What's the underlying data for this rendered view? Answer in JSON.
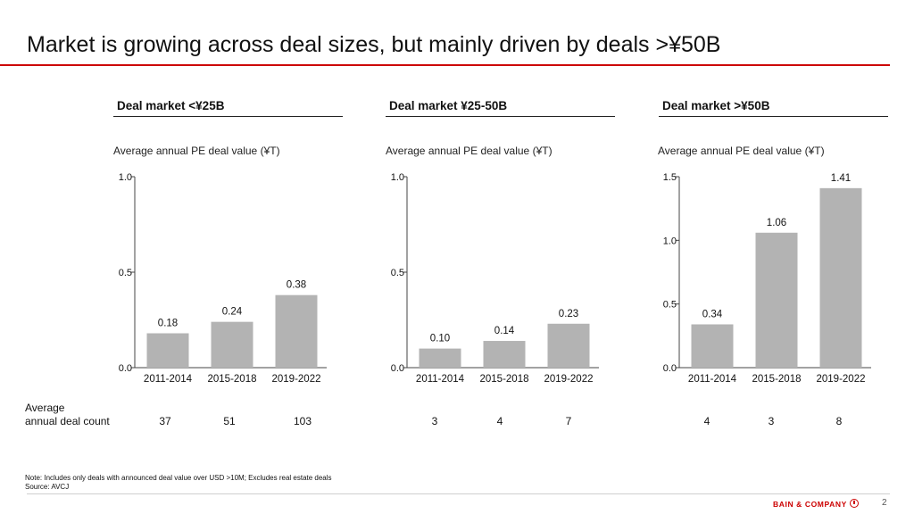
{
  "title": "Market is growing across deal sizes, but mainly driven by deals >¥50B",
  "count_label": [
    "Average",
    "annual deal count"
  ],
  "note": "Note: Includes only deals with announced deal value over USD  >10M; Excludes real estate deals",
  "source": "Source: AVCJ",
  "logo": "BAIN & COMPANY",
  "page_number": "2",
  "colors": {
    "bar": "#b3b3b3",
    "accent": "#cc0000"
  },
  "chart_data": [
    {
      "type": "bar",
      "panel_title": "Deal market <¥25B",
      "ylabel": "Average annual PE deal value (¥T)",
      "categories": [
        "2011-2014",
        "2015-2018",
        "2019-2022"
      ],
      "values": [
        0.18,
        0.24,
        0.38
      ],
      "value_labels": [
        "0.18",
        "0.24",
        "0.38"
      ],
      "ylim": [
        0,
        1.0
      ],
      "yticks": [
        0.0,
        0.5,
        1.0
      ],
      "ytick_labels": [
        "0.0",
        "0.5",
        "1.0"
      ],
      "deal_counts": [
        "37",
        "51",
        "103"
      ]
    },
    {
      "type": "bar",
      "panel_title": "Deal market ¥25-50B",
      "ylabel": "Average annual PE deal value (¥T)",
      "categories": [
        "2011-2014",
        "2015-2018",
        "2019-2022"
      ],
      "values": [
        0.1,
        0.14,
        0.23
      ],
      "value_labels": [
        "0.10",
        "0.14",
        "0.23"
      ],
      "ylim": [
        0,
        1.0
      ],
      "yticks": [
        0.0,
        0.5,
        1.0
      ],
      "ytick_labels": [
        "0.0",
        "0.5",
        "1.0"
      ],
      "deal_counts": [
        "3",
        "4",
        "7"
      ]
    },
    {
      "type": "bar",
      "panel_title": "Deal market >¥50B",
      "ylabel": "Average annual PE deal value (¥T)",
      "categories": [
        "2011-2014",
        "2015-2018",
        "2019-2022"
      ],
      "values": [
        0.34,
        1.06,
        1.41
      ],
      "value_labels": [
        "0.34",
        "1.06",
        "1.41"
      ],
      "ylim": [
        0,
        1.5
      ],
      "yticks": [
        0.0,
        0.5,
        1.0,
        1.5
      ],
      "ytick_labels": [
        "0.0",
        "0.5",
        "1.0",
        "1.5"
      ],
      "deal_counts": [
        "4",
        "3",
        "8"
      ]
    }
  ]
}
